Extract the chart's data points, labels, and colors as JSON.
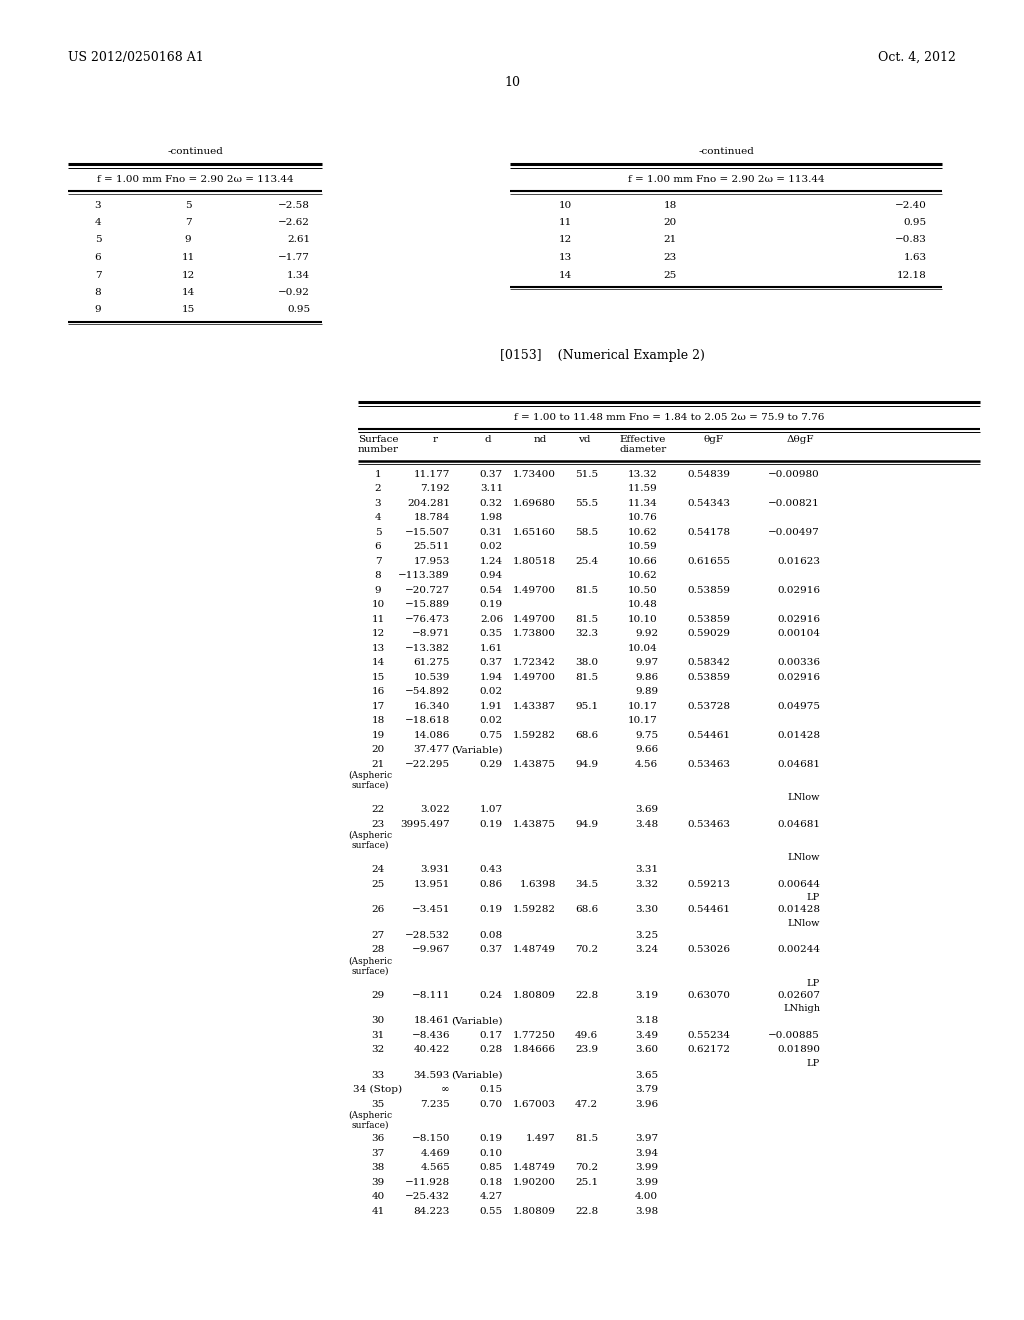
{
  "header_left": "US 2012/0250168 A1",
  "header_right": "Oct. 4, 2012",
  "page_number": "10",
  "cont_left_title": "-continued",
  "cont_left_subtitle": "f = 1.00 mm Fno = 2.90 2ω = 113.44",
  "cont_left_data": [
    [
      "3",
      "5",
      "−2.58"
    ],
    [
      "4",
      "7",
      "−2.62"
    ],
    [
      "5",
      "9",
      "2.61"
    ],
    [
      "6",
      "11",
      "−1.77"
    ],
    [
      "7",
      "12",
      "1.34"
    ],
    [
      "8",
      "14",
      "−0.92"
    ],
    [
      "9",
      "15",
      "0.95"
    ]
  ],
  "cont_right_title": "-continued",
  "cont_right_subtitle": "f = 1.00 mm Fno = 2.90 2ω = 113.44",
  "cont_right_data": [
    [
      "10",
      "18",
      "−2.40"
    ],
    [
      "11",
      "20",
      "0.95"
    ],
    [
      "12",
      "21",
      "−0.83"
    ],
    [
      "13",
      "23",
      "1.63"
    ],
    [
      "14",
      "25",
      "12.18"
    ]
  ],
  "num_example": "[0153]    (Numerical Example 2)",
  "main_subtitle": "f = 1.00 to 11.48 mm Fno = 1.84 to 2.05 2ω = 75.9 to 7.76",
  "main_rows": [
    {
      "s": "1",
      "r": "11.177",
      "d": "0.37",
      "nd": "1.73400",
      "vd": "51.5",
      "e": "13.32",
      "t": "0.54839",
      "dt": "−0.00980",
      "asp": false,
      "note": ""
    },
    {
      "s": "2",
      "r": "7.192",
      "d": "3.11",
      "nd": "",
      "vd": "",
      "e": "11.59",
      "t": "",
      "dt": "",
      "asp": false,
      "note": ""
    },
    {
      "s": "3",
      "r": "204.281",
      "d": "0.32",
      "nd": "1.69680",
      "vd": "55.5",
      "e": "11.34",
      "t": "0.54343",
      "dt": "−0.00821",
      "asp": false,
      "note": ""
    },
    {
      "s": "4",
      "r": "18.784",
      "d": "1.98",
      "nd": "",
      "vd": "",
      "e": "10.76",
      "t": "",
      "dt": "",
      "asp": false,
      "note": ""
    },
    {
      "s": "5",
      "r": "−15.507",
      "d": "0.31",
      "nd": "1.65160",
      "vd": "58.5",
      "e": "10.62",
      "t": "0.54178",
      "dt": "−0.00497",
      "asp": false,
      "note": ""
    },
    {
      "s": "6",
      "r": "25.511",
      "d": "0.02",
      "nd": "",
      "vd": "",
      "e": "10.59",
      "t": "",
      "dt": "",
      "asp": false,
      "note": ""
    },
    {
      "s": "7",
      "r": "17.953",
      "d": "1.24",
      "nd": "1.80518",
      "vd": "25.4",
      "e": "10.66",
      "t": "0.61655",
      "dt": "0.01623",
      "asp": false,
      "note": ""
    },
    {
      "s": "8",
      "r": "−113.389",
      "d": "0.94",
      "nd": "",
      "vd": "",
      "e": "10.62",
      "t": "",
      "dt": "",
      "asp": false,
      "note": ""
    },
    {
      "s": "9",
      "r": "−20.727",
      "d": "0.54",
      "nd": "1.49700",
      "vd": "81.5",
      "e": "10.50",
      "t": "0.53859",
      "dt": "0.02916",
      "asp": false,
      "note": ""
    },
    {
      "s": "10",
      "r": "−15.889",
      "d": "0.19",
      "nd": "",
      "vd": "",
      "e": "10.48",
      "t": "",
      "dt": "",
      "asp": false,
      "note": ""
    },
    {
      "s": "11",
      "r": "−76.473",
      "d": "2.06",
      "nd": "1.49700",
      "vd": "81.5",
      "e": "10.10",
      "t": "0.53859",
      "dt": "0.02916",
      "asp": false,
      "note": ""
    },
    {
      "s": "12",
      "r": "−8.971",
      "d": "0.35",
      "nd": "1.73800",
      "vd": "32.3",
      "e": "9.92",
      "t": "0.59029",
      "dt": "0.00104",
      "asp": false,
      "note": ""
    },
    {
      "s": "13",
      "r": "−13.382",
      "d": "1.61",
      "nd": "",
      "vd": "",
      "e": "10.04",
      "t": "",
      "dt": "",
      "asp": false,
      "note": ""
    },
    {
      "s": "14",
      "r": "61.275",
      "d": "0.37",
      "nd": "1.72342",
      "vd": "38.0",
      "e": "9.97",
      "t": "0.58342",
      "dt": "0.00336",
      "asp": false,
      "note": ""
    },
    {
      "s": "15",
      "r": "10.539",
      "d": "1.94",
      "nd": "1.49700",
      "vd": "81.5",
      "e": "9.86",
      "t": "0.53859",
      "dt": "0.02916",
      "asp": false,
      "note": ""
    },
    {
      "s": "16",
      "r": "−54.892",
      "d": "0.02",
      "nd": "",
      "vd": "",
      "e": "9.89",
      "t": "",
      "dt": "",
      "asp": false,
      "note": ""
    },
    {
      "s": "17",
      "r": "16.340",
      "d": "1.91",
      "nd": "1.43387",
      "vd": "95.1",
      "e": "10.17",
      "t": "0.53728",
      "dt": "0.04975",
      "asp": false,
      "note": ""
    },
    {
      "s": "18",
      "r": "−18.618",
      "d": "0.02",
      "nd": "",
      "vd": "",
      "e": "10.17",
      "t": "",
      "dt": "",
      "asp": false,
      "note": ""
    },
    {
      "s": "19",
      "r": "14.086",
      "d": "0.75",
      "nd": "1.59282",
      "vd": "68.6",
      "e": "9.75",
      "t": "0.54461",
      "dt": "0.01428",
      "asp": false,
      "note": ""
    },
    {
      "s": "20",
      "r": "37.477",
      "d": "(Variable)",
      "nd": "",
      "vd": "",
      "e": "9.66",
      "t": "",
      "dt": "",
      "asp": false,
      "note": ""
    },
    {
      "s": "21",
      "r": "−22.295",
      "d": "0.29",
      "nd": "1.43875",
      "vd": "94.9",
      "e": "4.56",
      "t": "0.53463",
      "dt": "0.04681",
      "asp": true,
      "note": ""
    },
    {
      "s": "",
      "r": "",
      "d": "",
      "nd": "",
      "vd": "",
      "e": "",
      "t": "",
      "dt": "",
      "asp": false,
      "note": "LNlow"
    },
    {
      "s": "22",
      "r": "3.022",
      "d": "1.07",
      "nd": "",
      "vd": "",
      "e": "3.69",
      "t": "",
      "dt": "",
      "asp": false,
      "note": ""
    },
    {
      "s": "23",
      "r": "3995.497",
      "d": "0.19",
      "nd": "1.43875",
      "vd": "94.9",
      "e": "3.48",
      "t": "0.53463",
      "dt": "0.04681",
      "asp": true,
      "note": ""
    },
    {
      "s": "",
      "r": "",
      "d": "",
      "nd": "",
      "vd": "",
      "e": "",
      "t": "",
      "dt": "",
      "asp": false,
      "note": "LNlow"
    },
    {
      "s": "24",
      "r": "3.931",
      "d": "0.43",
      "nd": "",
      "vd": "",
      "e": "3.31",
      "t": "",
      "dt": "",
      "asp": false,
      "note": ""
    },
    {
      "s": "25",
      "r": "13.951",
      "d": "0.86",
      "nd": "1.6398",
      "vd": "34.5",
      "e": "3.32",
      "t": "0.59213",
      "dt": "0.00644",
      "asp": false,
      "note": ""
    },
    {
      "s": "",
      "r": "",
      "d": "",
      "nd": "",
      "vd": "",
      "e": "",
      "t": "",
      "dt": "",
      "asp": false,
      "note": "LP"
    },
    {
      "s": "26",
      "r": "−3.451",
      "d": "0.19",
      "nd": "1.59282",
      "vd": "68.6",
      "e": "3.30",
      "t": "0.54461",
      "dt": "0.01428",
      "asp": false,
      "note": ""
    },
    {
      "s": "",
      "r": "",
      "d": "",
      "nd": "",
      "vd": "",
      "e": "",
      "t": "",
      "dt": "",
      "asp": false,
      "note": "LNlow"
    },
    {
      "s": "27",
      "r": "−28.532",
      "d": "0.08",
      "nd": "",
      "vd": "",
      "e": "3.25",
      "t": "",
      "dt": "",
      "asp": false,
      "note": ""
    },
    {
      "s": "28",
      "r": "−9.967",
      "d": "0.37",
      "nd": "1.48749",
      "vd": "70.2",
      "e": "3.24",
      "t": "0.53026",
      "dt": "0.00244",
      "asp": true,
      "note": ""
    },
    {
      "s": "",
      "r": "",
      "d": "",
      "nd": "",
      "vd": "",
      "e": "",
      "t": "",
      "dt": "",
      "asp": false,
      "note": "LP"
    },
    {
      "s": "29",
      "r": "−8.111",
      "d": "0.24",
      "nd": "1.80809",
      "vd": "22.8",
      "e": "3.19",
      "t": "0.63070",
      "dt": "0.02607",
      "asp": false,
      "note": ""
    },
    {
      "s": "",
      "r": "",
      "d": "",
      "nd": "",
      "vd": "",
      "e": "",
      "t": "",
      "dt": "",
      "asp": false,
      "note": "LNhigh"
    },
    {
      "s": "30",
      "r": "18.461",
      "d": "(Variable)",
      "nd": "",
      "vd": "",
      "e": "3.18",
      "t": "",
      "dt": "",
      "asp": false,
      "note": ""
    },
    {
      "s": "31",
      "r": "−8.436",
      "d": "0.17",
      "nd": "1.77250",
      "vd": "49.6",
      "e": "3.49",
      "t": "0.55234",
      "dt": "−0.00885",
      "asp": false,
      "note": ""
    },
    {
      "s": "32",
      "r": "40.422",
      "d": "0.28",
      "nd": "1.84666",
      "vd": "23.9",
      "e": "3.60",
      "t": "0.62172",
      "dt": "0.01890",
      "asp": false,
      "note": ""
    },
    {
      "s": "",
      "r": "",
      "d": "",
      "nd": "",
      "vd": "",
      "e": "",
      "t": "",
      "dt": "",
      "asp": false,
      "note": "LP"
    },
    {
      "s": "33",
      "r": "34.593",
      "d": "(Variable)",
      "nd": "",
      "vd": "",
      "e": "3.65",
      "t": "",
      "dt": "",
      "asp": false,
      "note": ""
    },
    {
      "s": "34 (Stop)",
      "r": "∞",
      "d": "0.15",
      "nd": "",
      "vd": "",
      "e": "3.79",
      "t": "",
      "dt": "",
      "asp": false,
      "note": ""
    },
    {
      "s": "35",
      "r": "7.235",
      "d": "0.70",
      "nd": "1.67003",
      "vd": "47.2",
      "e": "3.96",
      "t": "",
      "dt": "",
      "asp": true,
      "note": ""
    },
    {
      "s": "36",
      "r": "−8.150",
      "d": "0.19",
      "nd": "1.497",
      "vd": "81.5",
      "e": "3.97",
      "t": "",
      "dt": "",
      "asp": false,
      "note": ""
    },
    {
      "s": "37",
      "r": "4.469",
      "d": "0.10",
      "nd": "",
      "vd": "",
      "e": "3.94",
      "t": "",
      "dt": "",
      "asp": false,
      "note": ""
    },
    {
      "s": "38",
      "r": "4.565",
      "d": "0.85",
      "nd": "1.48749",
      "vd": "70.2",
      "e": "3.99",
      "t": "",
      "dt": "",
      "asp": false,
      "note": ""
    },
    {
      "s": "39",
      "r": "−11.928",
      "d": "0.18",
      "nd": "1.90200",
      "vd": "25.1",
      "e": "3.99",
      "t": "",
      "dt": "",
      "asp": false,
      "note": ""
    },
    {
      "s": "40",
      "r": "−25.432",
      "d": "4.27",
      "nd": "",
      "vd": "",
      "e": "4.00",
      "t": "",
      "dt": "",
      "asp": false,
      "note": ""
    },
    {
      "s": "41",
      "r": "84.223",
      "d": "0.55",
      "nd": "1.80809",
      "vd": "22.8",
      "e": "3.98",
      "t": "",
      "dt": "",
      "asp": false,
      "note": ""
    }
  ]
}
